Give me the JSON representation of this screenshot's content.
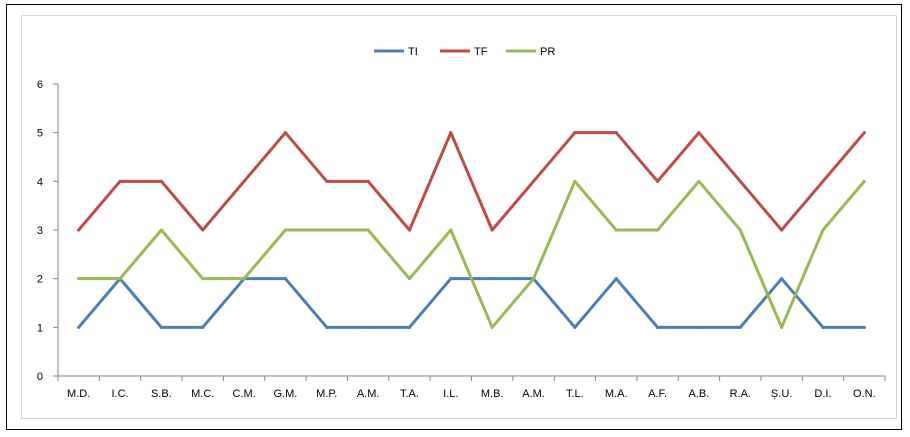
{
  "chart_data": {
    "type": "line",
    "title": "",
    "xlabel": "",
    "ylabel": "",
    "ylim": [
      0,
      6
    ],
    "yticks": [
      "0",
      "1",
      "2",
      "3",
      "4",
      "5",
      "6"
    ],
    "grid": false,
    "legend_position": "top-center",
    "categories": [
      "M.D.",
      "I.C.",
      "S.B.",
      "M.C.",
      "C.M.",
      "G.M.",
      "M.P.",
      "A.M.",
      "T.A.",
      "I.L.",
      "M.B.",
      "A.M.",
      "T.L.",
      "M.A.",
      "A.F.",
      "A.B.",
      "R.A.",
      "Ș.U.",
      "D.I.",
      "O.N."
    ],
    "series": [
      {
        "name": "TI",
        "color": "#4a7ebb",
        "values": [
          1,
          2,
          1,
          1,
          2,
          2,
          1,
          1,
          1,
          2,
          2,
          2,
          1,
          2,
          1,
          1,
          1,
          2,
          1,
          1
        ]
      },
      {
        "name": "TF",
        "color": "#be4b48",
        "values": [
          3,
          4,
          4,
          3,
          4,
          5,
          4,
          4,
          3,
          5,
          3,
          4,
          5,
          5,
          4,
          5,
          4,
          3,
          4,
          5
        ]
      },
      {
        "name": "PR",
        "color": "#98b954",
        "values": [
          2,
          2,
          3,
          2,
          2,
          3,
          3,
          3,
          2,
          3,
          1,
          2,
          4,
          3,
          3,
          4,
          3,
          1,
          3,
          4
        ]
      }
    ]
  }
}
